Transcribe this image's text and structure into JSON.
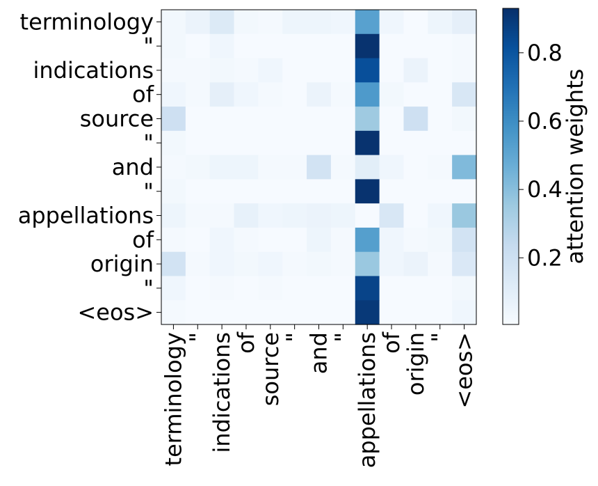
{
  "chart_data": {
    "type": "heatmap",
    "x_labels": [
      "terminology",
      "\"",
      "indications",
      "of",
      "source",
      "\"",
      "and",
      "\"",
      "appellations",
      "of",
      "origin",
      "\"",
      "<eos>"
    ],
    "y_labels": [
      "terminology",
      "\"",
      "indications",
      "of",
      "source",
      "\"",
      "and",
      "\"",
      "appellations",
      "of",
      "origin",
      "\"",
      "<eos>"
    ],
    "values": [
      [
        0.03,
        0.06,
        0.13,
        0.03,
        0.02,
        0.05,
        0.05,
        0.04,
        0.52,
        0.04,
        0.01,
        0.05,
        0.09
      ],
      [
        0.03,
        0.01,
        0.04,
        0.01,
        0.01,
        0.01,
        0.01,
        0.01,
        0.92,
        0.01,
        0.01,
        0.01,
        0.02
      ],
      [
        0.02,
        0.02,
        0.03,
        0.02,
        0.04,
        0.01,
        0.01,
        0.01,
        0.82,
        0.01,
        0.06,
        0.01,
        0.02
      ],
      [
        0.04,
        0.02,
        0.09,
        0.04,
        0.02,
        0.01,
        0.06,
        0.02,
        0.55,
        0.03,
        0.01,
        0.01,
        0.15
      ],
      [
        0.2,
        0.01,
        0.01,
        0.01,
        0.01,
        0.01,
        0.01,
        0.01,
        0.35,
        0.01,
        0.2,
        0.01,
        0.03
      ],
      [
        0.03,
        0.01,
        0.01,
        0.01,
        0.01,
        0.01,
        0.01,
        0.01,
        0.92,
        0.01,
        0.01,
        0.01,
        0.01
      ],
      [
        0.02,
        0.03,
        0.05,
        0.05,
        0.02,
        0.02,
        0.18,
        0.02,
        0.1,
        0.04,
        0.01,
        0.02,
        0.42
      ],
      [
        0.03,
        0.01,
        0.01,
        0.01,
        0.01,
        0.01,
        0.01,
        0.01,
        0.92,
        0.01,
        0.01,
        0.01,
        0.01
      ],
      [
        0.05,
        0.02,
        0.02,
        0.08,
        0.04,
        0.05,
        0.06,
        0.05,
        0.01,
        0.15,
        0.01,
        0.04,
        0.36
      ],
      [
        0.02,
        0.01,
        0.04,
        0.02,
        0.01,
        0.01,
        0.05,
        0.02,
        0.53,
        0.04,
        0.02,
        0.03,
        0.18
      ],
      [
        0.18,
        0.02,
        0.04,
        0.03,
        0.04,
        0.02,
        0.03,
        0.02,
        0.36,
        0.04,
        0.06,
        0.02,
        0.14
      ],
      [
        0.04,
        0.01,
        0.02,
        0.01,
        0.02,
        0.01,
        0.01,
        0.01,
        0.86,
        0.01,
        0.01,
        0.01,
        0.03
      ],
      [
        0.02,
        0.01,
        0.01,
        0.01,
        0.01,
        0.01,
        0.01,
        0.01,
        0.9,
        0.01,
        0.01,
        0.01,
        0.04
      ]
    ],
    "colormap": "Blues",
    "vmin": 0.005,
    "vmax": 0.93,
    "colorbar": {
      "label": "attention weights",
      "ticks": [
        0.2,
        0.4,
        0.6,
        0.8
      ],
      "tick_labels": [
        "0.2",
        "0.4",
        "0.6",
        "0.8"
      ]
    },
    "grid": false
  }
}
